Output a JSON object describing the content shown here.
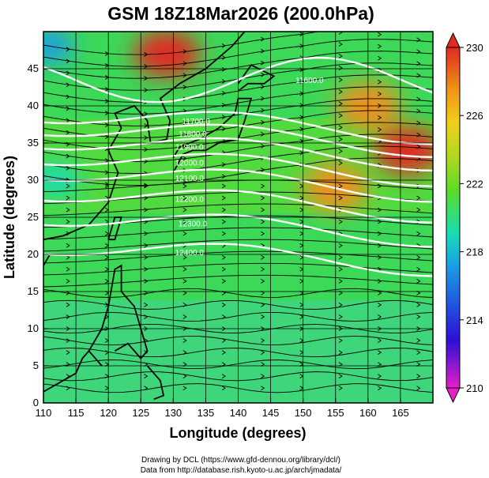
{
  "title": "GSM 18Z18Mar2026 (200.0hPa)",
  "chart_data": {
    "type": "map",
    "variable": "temperature / wind streamlines with geopotential height contours",
    "xlabel": "Longitude (degrees)",
    "ylabel": "Latitude  (degrees)",
    "xlim": [
      110,
      170
    ],
    "ylim": [
      0,
      50
    ],
    "x_ticks": [
      "110",
      "115",
      "120",
      "125",
      "130",
      "135",
      "140",
      "145",
      "150",
      "155",
      "160",
      "165"
    ],
    "y_ticks": [
      "0",
      "5",
      "10",
      "15",
      "20",
      "25",
      "30",
      "35",
      "40",
      "45"
    ],
    "colorbar": {
      "min": 210,
      "max": 230,
      "ticks": [
        "210",
        "214",
        "218",
        "222",
        "226",
        "230"
      ],
      "colors": [
        "#e81ec8",
        "#2a10d6",
        "#1a9ee6",
        "#18dcb8",
        "#5adc28",
        "#d2d820",
        "#f0901a",
        "#e02a20"
      ]
    },
    "warm_regions": [
      {
        "lon": 129,
        "lat": 47,
        "value": 229
      },
      {
        "lon": 160,
        "lat": 40,
        "value": 228
      },
      {
        "lon": 166,
        "lat": 34,
        "value": 229
      },
      {
        "lon": 155,
        "lat": 29,
        "value": 226
      }
    ],
    "cool_regions": [
      {
        "lon": 111,
        "lat": 48,
        "value": 215
      },
      {
        "lon": 112,
        "lat": 30,
        "value": 218
      }
    ],
    "height_contours": [
      {
        "value": "11600.0",
        "label": "11600.0",
        "label_lon": 151,
        "label_lat": 43.5
      },
      {
        "value": "11700.0",
        "label": "11700.0",
        "label_lon": 133.5,
        "label_lat": 38
      },
      {
        "value": "11800.0",
        "label": "11800.0",
        "label_lon": 133,
        "label_lat": 36.3
      },
      {
        "value": "11900.0",
        "label": "11900.0",
        "label_lon": 132.5,
        "label_lat": 34.5
      },
      {
        "value": "12000.0",
        "label": "12000.0",
        "label_lon": 132.5,
        "label_lat": 32.4
      },
      {
        "value": "12100.0",
        "label": "12100.0",
        "label_lon": 132.5,
        "label_lat": 30.3
      },
      {
        "value": "12200.0",
        "label": "12200.0",
        "label_lon": 132.5,
        "label_lat": 27.5
      },
      {
        "value": "12300.0",
        "label": "12300.0",
        "label_lon": 133,
        "label_lat": 24.2
      },
      {
        "value": "12400.0",
        "label": "12400.0",
        "label_lon": 132.5,
        "label_lat": 20.3
      }
    ]
  },
  "credits": {
    "line1": "Drawing by DCL (https://www.gfd-dennou.org/library/dcl/)",
    "line2": "Data from http://database.rish.kyoto-u.ac.jp/arch/jmadata/"
  }
}
